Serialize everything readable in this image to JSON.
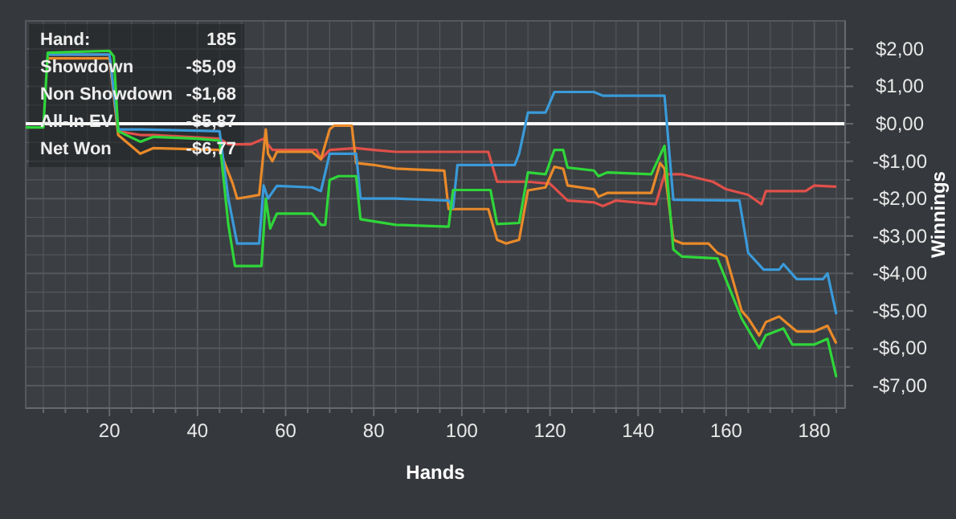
{
  "chart_data": {
    "type": "line",
    "xlabel": "Hands",
    "ylabel": "Winnings",
    "annotations": [
      "Hand:",
      "185",
      "Showdown",
      "-$5,09",
      "Non Showdown",
      "-$1,68",
      "All-In EV",
      "-$5,87",
      "Net Won",
      "-$6,77"
    ],
    "xlim": [
      1,
      187
    ],
    "ylim": [
      -7.6,
      2.75
    ],
    "xticks": [
      {
        "value": 5,
        "label": null
      },
      {
        "value": 10,
        "label": null
      },
      {
        "value": 15,
        "label": null
      },
      20,
      {
        "value": 25,
        "label": null
      },
      {
        "value": 30,
        "label": null
      },
      {
        "value": 35,
        "label": null
      },
      40,
      {
        "value": 45,
        "label": null
      },
      {
        "value": 50,
        "label": null
      },
      {
        "value": 55,
        "label": null
      },
      60,
      {
        "value": 65,
        "label": null
      },
      {
        "value": 70,
        "label": null
      },
      {
        "value": 75,
        "label": null
      },
      80,
      {
        "value": 85,
        "label": null
      },
      {
        "value": 90,
        "label": null
      },
      {
        "value": 95,
        "label": null
      },
      100,
      {
        "value": 105,
        "label": null
      },
      {
        "value": 110,
        "label": null
      },
      {
        "value": 115,
        "label": null
      },
      120,
      {
        "value": 125,
        "label": null
      },
      {
        "value": 130,
        "label": null
      },
      {
        "value": 135,
        "label": null
      },
      140,
      {
        "value": 145,
        "label": null
      },
      {
        "value": 150,
        "label": null
      },
      {
        "value": 155,
        "label": null
      },
      160,
      {
        "value": 165,
        "label": null
      },
      {
        "value": 170,
        "label": null
      },
      {
        "value": 175,
        "label": null
      },
      180,
      {
        "value": 185,
        "label": null
      }
    ],
    "yticks": [
      {
        "value": 2,
        "label": "$2,00"
      },
      {
        "value": 1.5,
        "label": null
      },
      {
        "value": 1,
        "label": "$1,00"
      },
      {
        "value": 0.5,
        "label": null
      },
      {
        "value": 0,
        "label": "$0,00"
      },
      {
        "value": -0.5,
        "label": null
      },
      {
        "value": -1,
        "label": "-$1,00"
      },
      {
        "value": -1.5,
        "label": null
      },
      {
        "value": -2,
        "label": "-$2,00"
      },
      {
        "value": -2.5,
        "label": null
      },
      {
        "value": -3,
        "label": "-$3,00"
      },
      {
        "value": -3.5,
        "label": null
      },
      {
        "value": -4,
        "label": "-$4,00"
      },
      {
        "value": -4.5,
        "label": null
      },
      {
        "value": -5,
        "label": "-$5,00"
      },
      {
        "value": -5.5,
        "label": null
      },
      {
        "value": -6,
        "label": "-$6,00"
      },
      {
        "value": -6.5,
        "label": null
      },
      {
        "value": -7,
        "label": "-$7,00"
      }
    ],
    "grid": true,
    "marker": "none",
    "line_style": "solid",
    "ref_lines": [
      {
        "axis": "y",
        "value": 0,
        "color": "#ffffff"
      }
    ],
    "series": [
      {
        "color": "#e0504a",
        "x": [
          6,
          20,
          22,
          27,
          30,
          45,
          47,
          52,
          55,
          57,
          67,
          68,
          70,
          76,
          80,
          85,
          100,
          106,
          108,
          115,
          120,
          124,
          130,
          132,
          135,
          144,
          146,
          150,
          157,
          160,
          165,
          168,
          169,
          178,
          180,
          185
        ],
        "values": [
          1.85,
          1.85,
          -0.2,
          -0.3,
          -0.3,
          -0.4,
          -0.55,
          -0.55,
          -0.4,
          -0.7,
          -0.7,
          -0.95,
          -0.7,
          -0.65,
          -0.7,
          -0.75,
          -0.75,
          -0.75,
          -1.55,
          -1.55,
          -1.6,
          -2.05,
          -2.1,
          -2.2,
          -2.05,
          -2.15,
          -1.35,
          -1.35,
          -1.55,
          -1.75,
          -1.9,
          -2.15,
          -1.8,
          -1.8,
          -1.65,
          -1.68
        ]
      },
      {
        "color": "#e98a2a",
        "x": [
          6,
          20,
          22,
          27,
          30,
          45,
          46,
          48,
          49,
          54,
          55.5,
          56,
          57,
          58,
          66,
          68,
          70,
          71,
          75,
          76,
          80,
          85,
          96,
          97,
          106,
          108,
          110,
          113,
          115,
          119,
          121,
          123,
          124,
          130,
          131,
          133,
          143,
          145,
          146,
          148,
          150,
          156,
          158,
          160,
          163.5,
          165,
          167.5,
          169,
          172,
          174,
          176,
          180,
          183,
          185
        ],
        "values": [
          1.75,
          1.75,
          -0.3,
          -0.8,
          -0.65,
          -0.7,
          -1.0,
          -1.6,
          -2.0,
          -1.9,
          -0.15,
          -0.8,
          -1.0,
          -0.75,
          -0.75,
          -0.95,
          -0.15,
          -0.05,
          -0.05,
          -1.05,
          -1.1,
          -1.2,
          -1.25,
          -2.28,
          -2.28,
          -3.1,
          -3.2,
          -3.1,
          -1.78,
          -1.7,
          -1.15,
          -1.2,
          -1.65,
          -1.75,
          -1.95,
          -1.85,
          -1.85,
          -1.05,
          -1.2,
          -3.1,
          -3.2,
          -3.2,
          -3.45,
          -3.55,
          -5.0,
          -5.2,
          -5.66,
          -5.3,
          -5.15,
          -5.35,
          -5.55,
          -5.55,
          -5.4,
          -5.87
        ]
      },
      {
        "color": "#3a9ad9",
        "x": [
          6,
          20,
          22,
          27,
          45,
          47,
          49,
          54,
          55,
          56,
          58,
          66,
          68,
          70,
          76,
          77,
          85,
          97,
          98,
          99,
          112,
          113,
          115,
          119,
          121,
          130,
          132,
          146,
          148,
          163,
          165,
          168.5,
          172,
          173,
          176,
          182,
          183,
          185
        ],
        "values": [
          1.85,
          1.85,
          -0.15,
          -0.15,
          -0.2,
          -2.0,
          -3.2,
          -3.2,
          -1.65,
          -2.0,
          -1.66,
          -1.7,
          -1.8,
          -0.8,
          -0.8,
          -2.0,
          -2.0,
          -2.05,
          -2.25,
          -1.1,
          -1.1,
          -0.8,
          0.3,
          0.3,
          0.85,
          0.85,
          0.75,
          0.75,
          -2.03,
          -2.05,
          -3.45,
          -3.9,
          -3.9,
          -3.75,
          -4.15,
          -4.15,
          -4.0,
          -5.09
        ]
      },
      {
        "color": "#2fd63a",
        "x": [
          1,
          5,
          6,
          20,
          21,
          22,
          27,
          30,
          40,
          45,
          47,
          48.5,
          54.5,
          55.5,
          56.5,
          58,
          66,
          68,
          69,
          70,
          72,
          76,
          77,
          85,
          97,
          98,
          100,
          106.5,
          108,
          113,
          115,
          119,
          121,
          123,
          124,
          130,
          131,
          133,
          143,
          146,
          148,
          150,
          158,
          163.5,
          165,
          167.5,
          169,
          173,
          175,
          180,
          183,
          185
        ],
        "values": [
          -0.1,
          -0.1,
          1.9,
          1.95,
          1.8,
          -0.2,
          -0.48,
          -0.35,
          -0.4,
          -0.45,
          -2.7,
          -3.8,
          -3.8,
          -2.0,
          -2.8,
          -2.4,
          -2.4,
          -2.7,
          -2.7,
          -1.5,
          -1.4,
          -1.4,
          -2.55,
          -2.7,
          -2.75,
          -1.77,
          -1.77,
          -1.77,
          -2.68,
          -2.65,
          -1.3,
          -1.35,
          -0.7,
          -0.7,
          -1.17,
          -1.25,
          -1.4,
          -1.3,
          -1.35,
          -0.59,
          -3.36,
          -3.55,
          -3.6,
          -5.2,
          -5.5,
          -6.0,
          -5.65,
          -5.47,
          -5.9,
          -5.9,
          -5.75,
          -6.77
        ]
      }
    ]
  }
}
